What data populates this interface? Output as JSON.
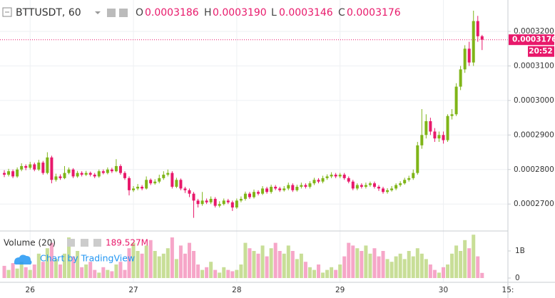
{
  "chart_data": {
    "type": "candlestick",
    "symbol": "BTTUSDT, 60",
    "ohlc_header": {
      "O": "0.0003186",
      "H": "0.0003190",
      "L": "0.0003146",
      "C": "0.0003176"
    },
    "volume_title": "Volume (20)",
    "volume_legend": "189.527M",
    "watermark": "Chart by TradingView",
    "price_label": "0.0003176",
    "countdown": "20:52",
    "up_color": "#7fb518",
    "down_color": "#e8196b",
    "volume_up_color": "#c8de97",
    "volume_down_color": "#f6a6c8",
    "grid": true,
    "xlim": [
      -1,
      117
    ],
    "xticks": [
      {
        "value": 6,
        "label": "26"
      },
      {
        "value": 30,
        "label": "27"
      },
      {
        "value": 54,
        "label": "28"
      },
      {
        "value": 78,
        "label": "29"
      },
      {
        "value": 102,
        "label": "30"
      },
      {
        "value": 117,
        "label": "15:"
      }
    ],
    "ylim": [
      0.0002624,
      0.0003291
    ],
    "yticks": [
      {
        "value": 0.00027,
        "label": "0.0002700"
      },
      {
        "value": 0.00028,
        "label": "0.0002800"
      },
      {
        "value": 0.00029,
        "label": "0.0002900"
      },
      {
        "value": 0.0003,
        "label": "0.0003000"
      },
      {
        "value": 0.00031,
        "label": "0.0003100"
      },
      {
        "value": 0.00032,
        "label": "0.0003200"
      }
    ],
    "volume_ylim": [
      0,
      1700000000.0
    ],
    "volume_yticks": [
      0,
      {
        "value": 1000000000.0,
        "label": "1B"
      }
    ],
    "x": [
      0,
      1,
      2,
      3,
      4,
      5,
      6,
      7,
      8,
      9,
      10,
      11,
      12,
      13,
      14,
      15,
      16,
      17,
      18,
      19,
      20,
      21,
      22,
      23,
      24,
      25,
      26,
      27,
      28,
      29,
      30,
      31,
      32,
      33,
      34,
      35,
      36,
      37,
      38,
      39,
      40,
      41,
      42,
      43,
      44,
      45,
      46,
      47,
      48,
      49,
      50,
      51,
      52,
      53,
      54,
      55,
      56,
      57,
      58,
      59,
      60,
      61,
      62,
      63,
      64,
      65,
      66,
      67,
      68,
      69,
      70,
      71,
      72,
      73,
      74,
      75,
      76,
      77,
      78,
      79,
      80,
      81,
      82,
      83,
      84,
      85,
      86,
      87,
      88,
      89,
      90,
      91,
      92,
      93,
      94,
      95,
      96,
      97,
      98,
      99,
      100,
      101,
      102,
      103,
      104,
      105,
      106,
      107,
      108,
      109,
      110,
      111
    ],
    "open": [
      0.000279,
      0.0002785,
      0.0002795,
      0.000278,
      0.00028,
      0.000281,
      0.0002805,
      0.0002815,
      0.00028,
      0.000282,
      0.000279,
      0.0002835,
      0.000277,
      0.000278,
      0.0002775,
      0.000279,
      0.00028,
      0.000278,
      0.000279,
      0.0002785,
      0.000279,
      0.0002785,
      0.000278,
      0.0002795,
      0.000279,
      0.00028,
      0.0002795,
      0.000281,
      0.000279,
      0.0002775,
      0.000274,
      0.0002745,
      0.000275,
      0.0002745,
      0.000277,
      0.000276,
      0.0002765,
      0.0002775,
      0.0002785,
      0.000279,
      0.000275,
      0.000277,
      0.0002745,
      0.000274,
      0.000273,
      0.000271,
      0.00027,
      0.000271,
      0.0002705,
      0.0002715,
      0.0002695,
      0.00027,
      0.000271,
      0.0002705,
      0.000269,
      0.000271,
      0.0002715,
      0.000273,
      0.000272,
      0.0002735,
      0.000273,
      0.0002745,
      0.0002735,
      0.000275,
      0.0002745,
      0.000274,
      0.0002745,
      0.0002755,
      0.000274,
      0.000275,
      0.0002755,
      0.000275,
      0.000276,
      0.000277,
      0.0002765,
      0.0002775,
      0.000278,
      0.0002785,
      0.000278,
      0.0002785,
      0.0002775,
      0.0002765,
      0.0002745,
      0.0002755,
      0.000275,
      0.0002755,
      0.000276,
      0.000275,
      0.0002745,
      0.0002735,
      0.000274,
      0.0002745,
      0.0002755,
      0.000276,
      0.000277,
      0.0002775,
      0.000279,
      0.000287,
      0.00029,
      0.000294,
      0.000291,
      0.000289,
      0.00029,
      0.0002885,
      0.0002955,
      0.000296,
      0.000304,
      0.000309,
      0.000315,
      0.000311,
      0.000323,
      0.0003186
    ],
    "high": [
      0.0002798,
      0.0002802,
      0.00028,
      0.0002806,
      0.0002818,
      0.0002815,
      0.0002822,
      0.000282,
      0.0002828,
      0.0002825,
      0.000285,
      0.000284,
      0.0002788,
      0.0002786,
      0.000281,
      0.0002806,
      0.0002804,
      0.0002796,
      0.0002795,
      0.0002796,
      0.0002794,
      0.000279,
      0.00028,
      0.00028,
      0.0002806,
      0.0002805,
      0.000283,
      0.0002815,
      0.0002795,
      0.000278,
      0.0002752,
      0.0002758,
      0.0002755,
      0.000278,
      0.0002774,
      0.0002772,
      0.0002785,
      0.0002795,
      0.00028,
      0.0002795,
      0.0002776,
      0.0002774,
      0.000275,
      0.0002745,
      0.0002735,
      0.0002715,
      0.0002735,
      0.0002716,
      0.0002722,
      0.000272,
      0.0002708,
      0.0002716,
      0.0002715,
      0.000271,
      0.0002716,
      0.0002722,
      0.0002736,
      0.0002735,
      0.0002742,
      0.000274,
      0.0002752,
      0.000275,
      0.0002756,
      0.0002755,
      0.000275,
      0.0002752,
      0.0002762,
      0.000276,
      0.0002756,
      0.0002762,
      0.000276,
      0.0002766,
      0.0002776,
      0.0002775,
      0.0002782,
      0.0002786,
      0.0002792,
      0.000279,
      0.000279,
      0.000279,
      0.000278,
      0.000277,
      0.000276,
      0.000276,
      0.0002762,
      0.0002765,
      0.0002765,
      0.0002755,
      0.000275,
      0.0002746,
      0.0002752,
      0.000276,
      0.0002766,
      0.0002776,
      0.0002782,
      0.00028,
      0.000288,
      0.0002975,
      0.000296,
      0.000295,
      0.000292,
      0.000291,
      0.000291,
      0.000296,
      0.0002975,
      0.000305,
      0.00031,
      0.000316,
      0.000317,
      0.000326,
      0.0003245,
      0.000319
    ],
    "low": [
      0.0002778,
      0.000278,
      0.0002775,
      0.0002776,
      0.0002795,
      0.0002798,
      0.00028,
      0.0002795,
      0.0002796,
      0.0002785,
      0.0002786,
      0.000276,
      0.0002765,
      0.000277,
      0.0002772,
      0.0002786,
      0.0002775,
      0.0002776,
      0.000278,
      0.0002781,
      0.000278,
      0.0002775,
      0.0002776,
      0.0002786,
      0.0002786,
      0.000279,
      0.0002792,
      0.0002785,
      0.000277,
      0.0002725,
      0.0002735,
      0.000274,
      0.000274,
      0.0002742,
      0.0002755,
      0.0002756,
      0.000276,
      0.000277,
      0.000278,
      0.0002745,
      0.0002746,
      0.000274,
      0.0002732,
      0.000272,
      0.000266,
      0.000269,
      0.0002695,
      0.00027,
      0.00027,
      0.000269,
      0.000269,
      0.0002696,
      0.00027,
      0.000268,
      0.0002686,
      0.0002705,
      0.000271,
      0.0002715,
      0.0002716,
      0.0002725,
      0.0002726,
      0.000273,
      0.000273,
      0.000274,
      0.0002735,
      0.0002736,
      0.000274,
      0.0002735,
      0.0002736,
      0.0002745,
      0.0002745,
      0.0002745,
      0.0002755,
      0.000276,
      0.000276,
      0.000277,
      0.0002775,
      0.0002775,
      0.0002775,
      0.000277,
      0.000276,
      0.000274,
      0.000274,
      0.0002745,
      0.0002745,
      0.000275,
      0.0002745,
      0.0002738,
      0.000273,
      0.000273,
      0.0002736,
      0.000274,
      0.000275,
      0.0002756,
      0.0002765,
      0.000277,
      0.0002785,
      0.000286,
      0.000289,
      0.00029,
      0.000288,
      0.000288,
      0.0002875,
      0.000288,
      0.0002945,
      0.0002955,
      0.000303,
      0.000308,
      0.00031,
      0.00031,
      0.000317,
      0.0003146
    ],
    "close": [
      0.0002785,
      0.0002795,
      0.000278,
      0.00028,
      0.000281,
      0.0002805,
      0.0002815,
      0.00028,
      0.000282,
      0.000279,
      0.0002835,
      0.000277,
      0.000278,
      0.0002775,
      0.000279,
      0.00028,
      0.000278,
      0.000279,
      0.0002785,
      0.000279,
      0.0002785,
      0.000278,
      0.0002795,
      0.000279,
      0.00028,
      0.0002795,
      0.000281,
      0.000279,
      0.0002775,
      0.000274,
      0.0002745,
      0.000275,
      0.0002745,
      0.000277,
      0.000276,
      0.0002765,
      0.0002775,
      0.0002785,
      0.000279,
      0.000275,
      0.000277,
      0.0002745,
      0.000274,
      0.000273,
      0.000271,
      0.00027,
      0.000271,
      0.0002705,
      0.0002715,
      0.0002695,
      0.00027,
      0.000271,
      0.0002705,
      0.000269,
      0.000271,
      0.0002715,
      0.000273,
      0.000272,
      0.0002735,
      0.000273,
      0.0002745,
      0.0002735,
      0.000275,
      0.0002745,
      0.000274,
      0.0002745,
      0.0002755,
      0.000274,
      0.000275,
      0.0002755,
      0.000275,
      0.000276,
      0.000277,
      0.0002765,
      0.0002775,
      0.000278,
      0.0002785,
      0.000278,
      0.0002785,
      0.0002775,
      0.0002765,
      0.0002745,
      0.0002755,
      0.000275,
      0.0002755,
      0.000276,
      0.000275,
      0.0002745,
      0.0002735,
      0.000274,
      0.0002745,
      0.0002755,
      0.000276,
      0.000277,
      0.0002775,
      0.000279,
      0.000287,
      0.00029,
      0.000294,
      0.000291,
      0.000289,
      0.00029,
      0.0002885,
      0.0002955,
      0.000296,
      0.000304,
      0.000309,
      0.000315,
      0.000311,
      0.000323,
      0.0003186,
      0.0003176
    ],
    "volume": [
      450000000.0,
      300000000.0,
      550000000.0,
      350000000.0,
      600000000.0,
      400000000.0,
      300000000.0,
      500000000.0,
      900000000.0,
      600000000.0,
      1100000000.0,
      1300000000.0,
      700000000.0,
      500000000.0,
      900000000.0,
      1500000000.0,
      800000000.0,
      1000000000.0,
      400000000.0,
      500000000.0,
      600000000.0,
      300000000.0,
      200000000.0,
      400000000.0,
      300000000.0,
      250000000.0,
      500000000.0,
      600000000.0,
      300000000.0,
      1100000000.0,
      1300000000.0,
      1000000000.0,
      900000000.0,
      1200000000.0,
      1400000000.0,
      1000000000.0,
      800000000.0,
      900000000.0,
      1100000000.0,
      1500000000.0,
      700000000.0,
      1200000000.0,
      900000000.0,
      1300000000.0,
      1000000000.0,
      500000000.0,
      300000000.0,
      400000000.0,
      600000000.0,
      300000000.0,
      200000000.0,
      400000000.0,
      300000000.0,
      250000000.0,
      300000000.0,
      500000000.0,
      1300000000.0,
      1100000000.0,
      1000000000.0,
      900000000.0,
      1200000000.0,
      800000000.0,
      1100000000.0,
      1300000000.0,
      1000000000.0,
      900000000.0,
      1200000000.0,
      1000000000.0,
      700000000.0,
      900000000.0,
      600000000.0,
      400000000.0,
      300000000.0,
      500000000.0,
      200000000.0,
      300000000.0,
      400000000.0,
      300000000.0,
      500000000.0,
      800000000.0,
      1300000000.0,
      1200000000.0,
      1100000000.0,
      1000000000.0,
      1200000000.0,
      900000000.0,
      1100000000.0,
      800000000.0,
      1000000000.0,
      700000000.0,
      600000000.0,
      800000000.0,
      900000000.0,
      700000000.0,
      1000000000.0,
      800000000.0,
      1100000000.0,
      900000000.0,
      700000000.0,
      500000000.0,
      300000000.0,
      200000000.0,
      400000000.0,
      500000000.0,
      900000000.0,
      1200000000.0,
      1000000000.0,
      1400000000.0,
      1100000000.0,
      1600000000.0,
      800000000.0,
      189527000.0
    ]
  }
}
